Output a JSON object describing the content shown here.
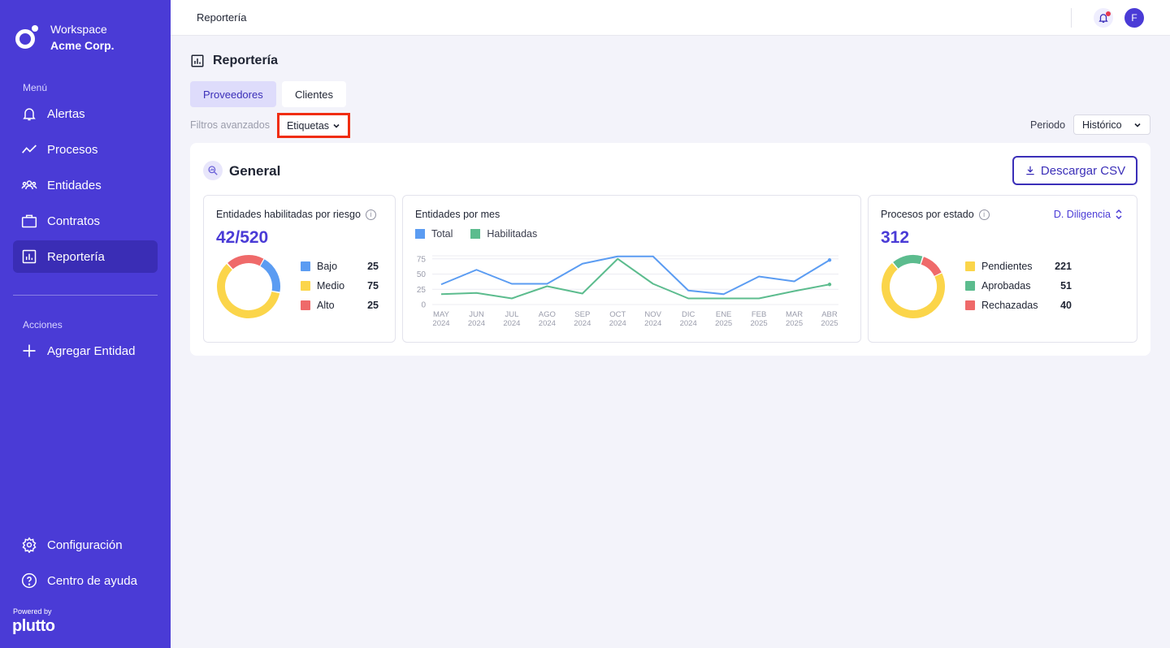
{
  "workspace": {
    "label": "Workspace",
    "org": "Acme Corp."
  },
  "sidebar": {
    "menu_label": "Menú",
    "items": [
      {
        "label": "Alertas",
        "icon": "bell-icon"
      },
      {
        "label": "Procesos",
        "icon": "trend-icon"
      },
      {
        "label": "Entidades",
        "icon": "users-icon"
      },
      {
        "label": "Contratos",
        "icon": "briefcase-icon"
      },
      {
        "label": "Reportería",
        "icon": "chart-icon",
        "active": true
      }
    ],
    "actions_label": "Acciones",
    "actions": [
      {
        "label": "Agregar Entidad",
        "icon": "plus-icon"
      }
    ],
    "bottom": [
      {
        "label": "Configuración",
        "icon": "gear-icon"
      },
      {
        "label": "Centro de ayuda",
        "icon": "help-icon"
      }
    ],
    "powered_by": "Powered by",
    "brand": "plutto"
  },
  "topbar": {
    "breadcrumb": "Reportería",
    "avatar_initial": "F"
  },
  "page": {
    "title": "Reportería"
  },
  "tabs": [
    {
      "label": "Proveedores",
      "active": true
    },
    {
      "label": "Clientes",
      "active": false
    }
  ],
  "filters": {
    "label": "Filtros avanzados",
    "tags": "Etiquetas",
    "period_label": "Periodo",
    "period_value": "Histórico"
  },
  "section": {
    "title": "General",
    "download": "Descargar CSV"
  },
  "cards": {
    "risk": {
      "title": "Entidades habilitadas por riesgo",
      "value": "42/520",
      "legend": [
        {
          "label": "Bajo",
          "value": "25",
          "color": "#5b9cf2"
        },
        {
          "label": "Medio",
          "value": "75",
          "color": "#fbd54a"
        },
        {
          "label": "Alto",
          "value": "25",
          "color": "#ef6a6a"
        }
      ]
    },
    "monthly": {
      "title": "Entidades por mes"
    },
    "process": {
      "title": "Procesos por estado",
      "selector": "D. Diligencia",
      "value": "312",
      "legend": [
        {
          "label": "Pendientes",
          "value": "221",
          "color": "#fbd54a"
        },
        {
          "label": "Aprobadas",
          "value": "51",
          "color": "#5cbc8e"
        },
        {
          "label": "Rechazadas",
          "value": "40",
          "color": "#ef6a6a"
        }
      ]
    }
  },
  "chart_data": {
    "type": "line",
    "x": [
      "MAY 2024",
      "JUN 2024",
      "JUL 2024",
      "AGO 2024",
      "SEP 2024",
      "OCT 2024",
      "NOV 2024",
      "DIC 2024",
      "ENE 2025",
      "FEB 2025",
      "MAR 2025",
      "ABR 2025"
    ],
    "series": [
      {
        "name": "Total",
        "color": "#5b9cf2",
        "values": [
          33,
          57,
          34,
          34,
          67,
          79,
          79,
          23,
          17,
          46,
          38,
          73
        ]
      },
      {
        "name": "Habilitadas",
        "color": "#5cbc8e",
        "values": [
          17,
          19,
          10,
          30,
          18,
          75,
          34,
          10,
          10,
          10,
          22,
          33
        ]
      }
    ],
    "yticks": [
      "0",
      "25",
      "50",
      "75"
    ],
    "ylim": [
      0,
      80
    ]
  }
}
